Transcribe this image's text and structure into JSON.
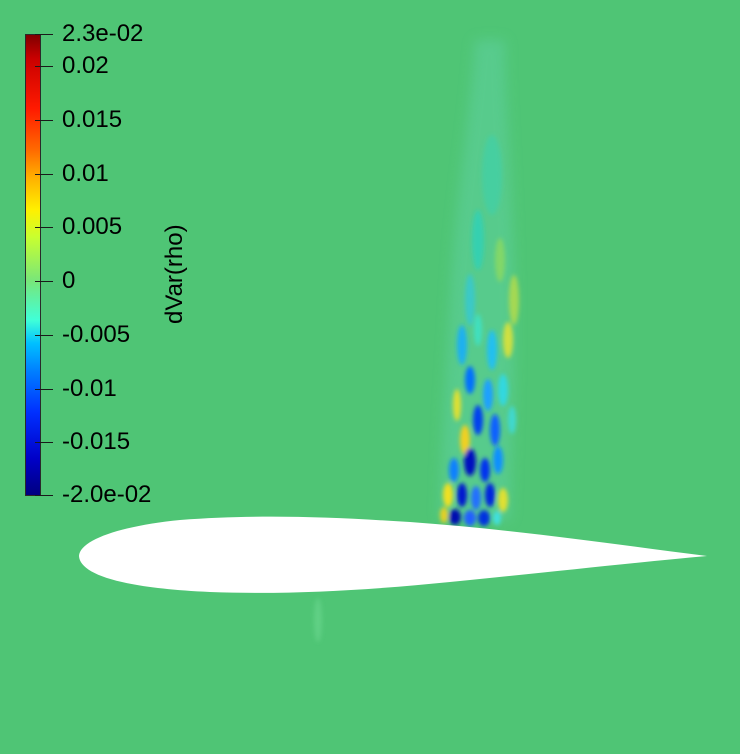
{
  "legend": {
    "title": "dVar(rho)",
    "range": [
      -0.02,
      0.023
    ],
    "ticks": [
      {
        "label": "2.3e-02",
        "value": 0.023
      },
      {
        "label": "0.02",
        "value": 0.02
      },
      {
        "label": "0.015",
        "value": 0.015
      },
      {
        "label": "0.01",
        "value": 0.01
      },
      {
        "label": "0.005",
        "value": 0.005
      },
      {
        "label": "0",
        "value": 0
      },
      {
        "label": "-0.005",
        "value": -0.005
      },
      {
        "label": "-0.01",
        "value": -0.01
      },
      {
        "label": "-0.015",
        "value": -0.015
      },
      {
        "label": "-2.0e-02",
        "value": -0.02
      }
    ],
    "colormap": "jet"
  },
  "colors": {
    "background": "#4fc575",
    "airfoil": "#ffffff"
  }
}
